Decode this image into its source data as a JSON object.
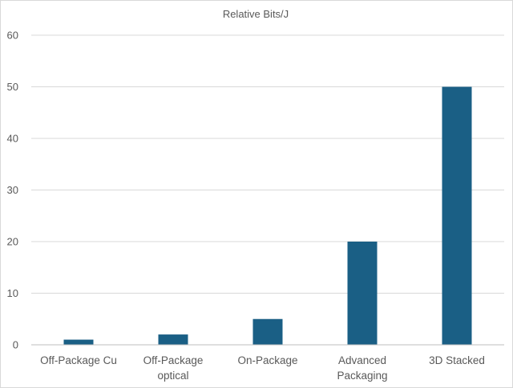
{
  "chart_data": {
    "type": "bar",
    "title": "Relative Bits/J",
    "categories": [
      "Off-Package Cu",
      "Off-Package optical",
      "On-Package",
      "Advanced Packaging",
      "3D Stacked"
    ],
    "category_lines": [
      [
        "Off-Package Cu"
      ],
      [
        "Off-Package",
        "optical"
      ],
      [
        "On-Package"
      ],
      [
        "Advanced",
        "Packaging"
      ],
      [
        "3D Stacked"
      ]
    ],
    "values": [
      1,
      2,
      5,
      20,
      50
    ],
    "ylim": [
      0,
      60
    ],
    "yticks": [
      0,
      10,
      20,
      30,
      40,
      50,
      60
    ],
    "grid": true,
    "legend": "none",
    "bar_color": "#1a5f85",
    "xlabel": "",
    "ylabel": ""
  }
}
